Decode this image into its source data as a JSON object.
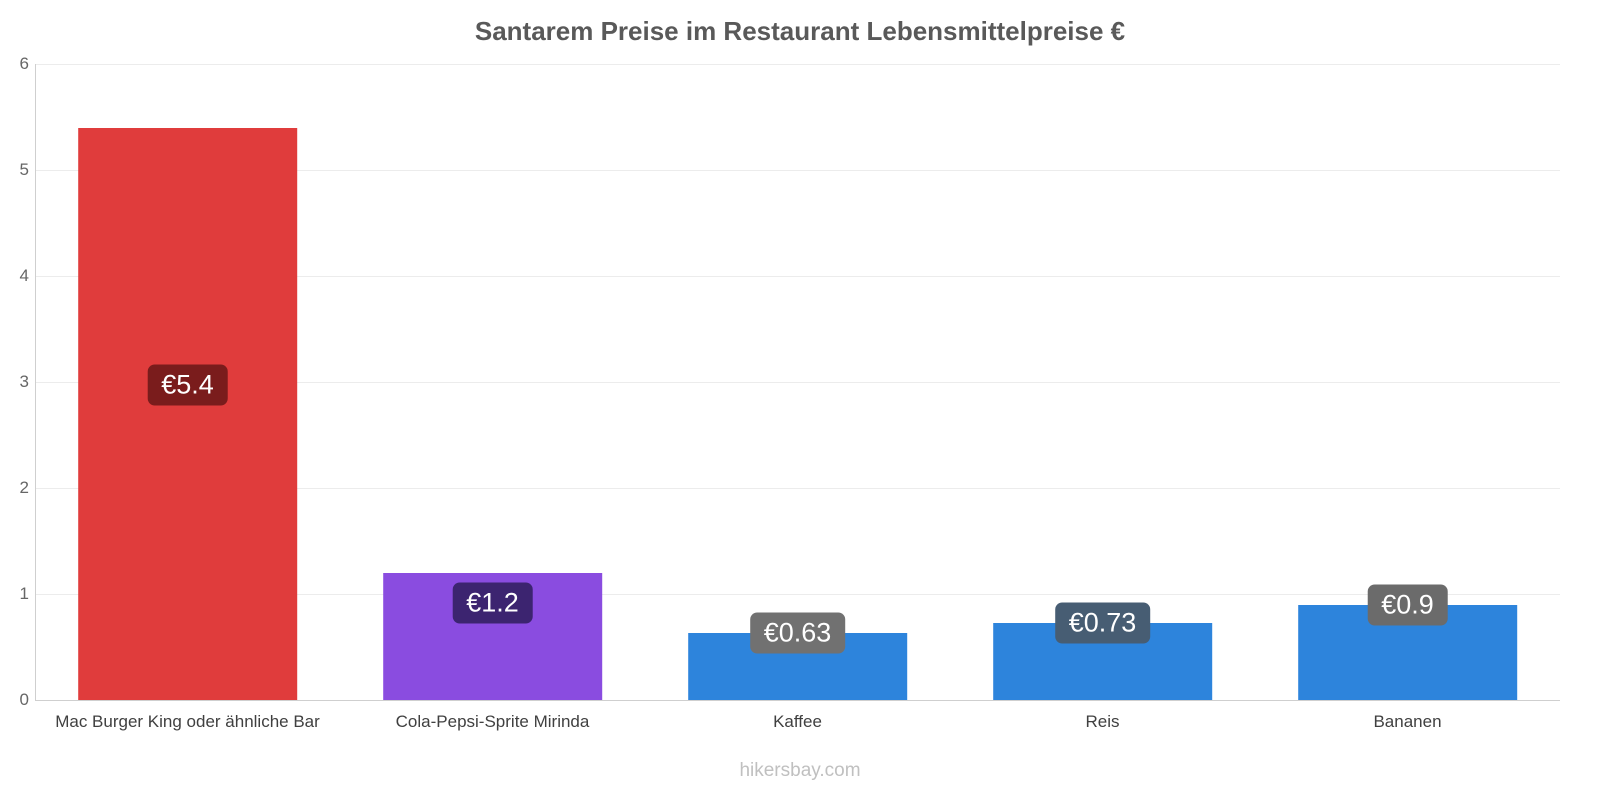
{
  "chart_data": {
    "type": "bar",
    "title": "Santarem Preise im Restaurant Lebensmittelpreise €",
    "categories": [
      "Mac Burger King oder ähnliche Bar",
      "Cola-Pepsi-Sprite Mirinda",
      "Kaffee",
      "Reis",
      "Bananen"
    ],
    "values": [
      5.4,
      1.2,
      0.63,
      0.73,
      0.9
    ],
    "value_labels": [
      "€5.4",
      "€1.2",
      "€0.63",
      "€0.73",
      "€0.9"
    ],
    "bar_colors": [
      "#e03c3c",
      "#8a4ce0",
      "#2d84dc",
      "#2d84dc",
      "#2d84dc"
    ],
    "label_bg_colors": [
      "#7a1c1c",
      "#3c2470",
      "#717171",
      "#475d73",
      "#6b6b6b"
    ],
    "xlabel": "",
    "ylabel": "",
    "ylim": [
      0,
      6
    ],
    "y_ticks": [
      "0",
      "1",
      "2",
      "3",
      "4",
      "5",
      "6"
    ],
    "grid": true,
    "legend_position": "none"
  },
  "footer": "hikersbay.com"
}
